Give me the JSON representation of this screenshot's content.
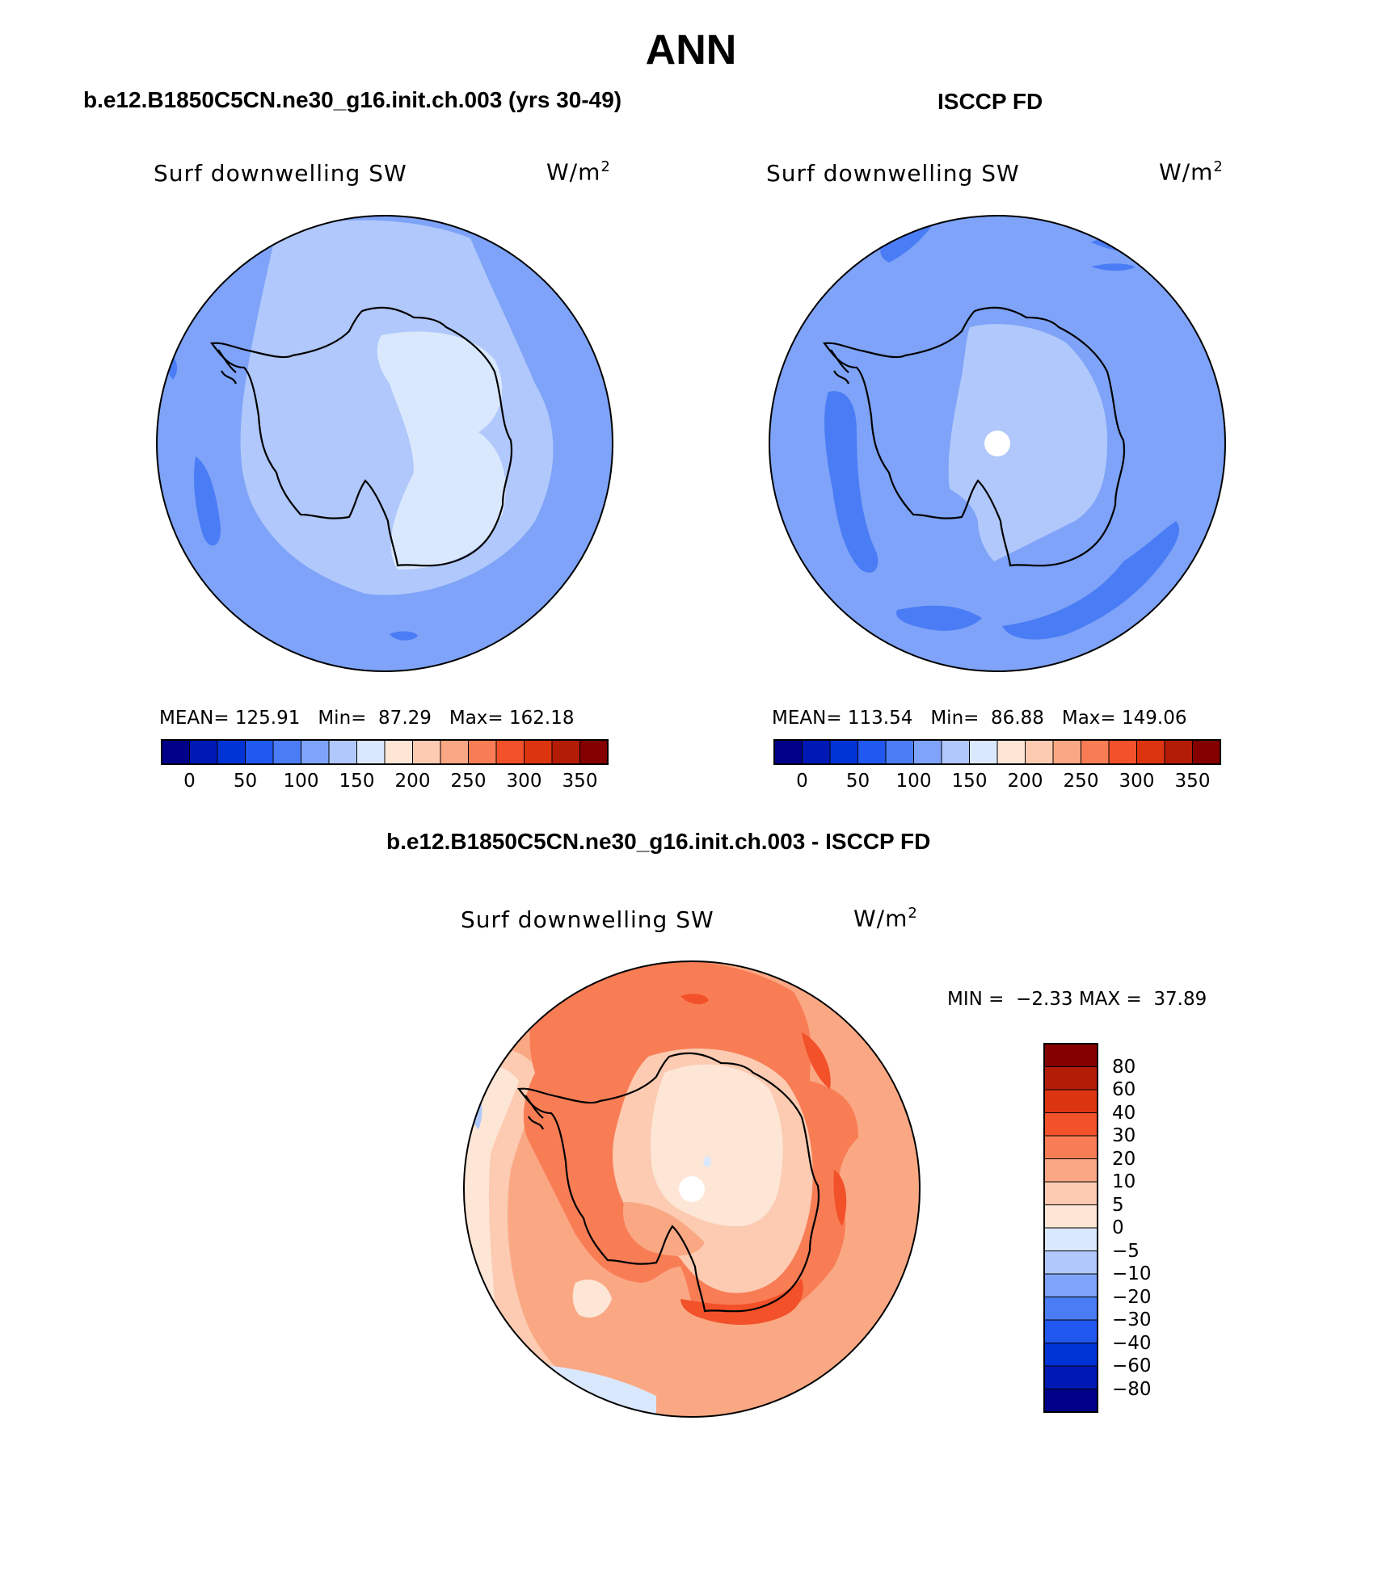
{
  "figure": {
    "title": "ANN",
    "panel_left_title": "b.e12.B1850C5CN.ne30_g16.init.ch.003 (yrs 30-49)",
    "panel_right_title": "ISCCP FD",
    "panel_diff_title": "b.e12.B1850C5CN.ne30_g16.init.ch.003 - ISCCP FD"
  },
  "panels": [
    {
      "id": "model",
      "variable": "Surf downwelling SW",
      "units": "W/m",
      "units_sup": "2",
      "mean_label": "MEAN=",
      "mean": "125.91",
      "min_label": "Min=",
      "min": "87.29",
      "max_label": "Max=",
      "max": "162.18"
    },
    {
      "id": "obs",
      "variable": "Surf downwelling SW",
      "units": "W/m",
      "units_sup": "2",
      "mean_label": "MEAN=",
      "mean": "113.54",
      "min_label": "Min=",
      "min": "86.88",
      "max_label": "Max=",
      "max": "149.06"
    },
    {
      "id": "diff",
      "variable": "Surf downwelling SW",
      "units": "W/m",
      "units_sup": "2",
      "min_label": "MIN =",
      "min": "−2.33",
      "max_label": "MAX =",
      "max": "37.89"
    }
  ],
  "colorbar_abs": {
    "colors": [
      "#00008b",
      "#0019b4",
      "#0033d6",
      "#2158f0",
      "#4a7cf5",
      "#7ea3f8",
      "#b0c8fb",
      "#dae8fd",
      "#fde6d6",
      "#fccbb2",
      "#faa884",
      "#f87d55",
      "#f2512a",
      "#dd3410",
      "#b31c06",
      "#840000"
    ],
    "ticks": [
      "0",
      "50",
      "100",
      "150",
      "200",
      "250",
      "300",
      "350"
    ]
  },
  "colorbar_diff": {
    "colors": [
      "#840000",
      "#b31c06",
      "#dd3410",
      "#f2512a",
      "#f87d55",
      "#faa884",
      "#fccbb2",
      "#fde6d6",
      "#dae8fd",
      "#b0c8fb",
      "#7ea3f8",
      "#4a7cf5",
      "#2158f0",
      "#0033d6",
      "#0019b4",
      "#00008b"
    ],
    "ticks": [
      "80",
      "60",
      "40",
      "30",
      "20",
      "10",
      "5",
      "0",
      "−5",
      "−10",
      "−20",
      "−30",
      "−40",
      "−60",
      "−80"
    ]
  },
  "map_colors": {
    "model_ocean": "#7ea3f8",
    "model_inner": "#b0c8fb",
    "model_plateau": "#dae8fd",
    "model_low": "#4a7cf5",
    "obs_ocean": "#7ea3f8",
    "obs_inner": "#b0c8fb",
    "obs_low": "#4a7cf5",
    "diff_base": "#fccbb2",
    "diff_mid": "#faa884",
    "diff_high": "#f87d55",
    "diff_peak": "#f2512a",
    "diff_light": "#fde6d6",
    "diff_neg": "#dae8fd",
    "diff_neg2": "#b0c8fb"
  }
}
